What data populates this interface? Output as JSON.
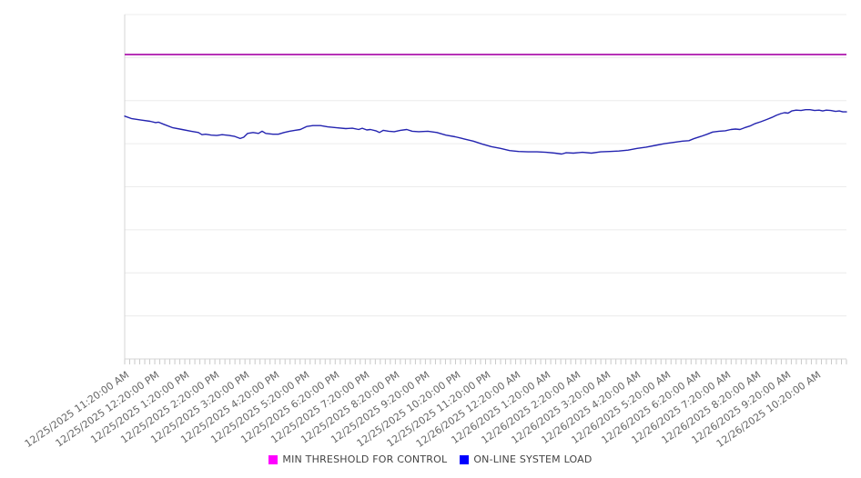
{
  "chart_data": {
    "type": "line",
    "title": "",
    "xlabel": "",
    "ylabel": "",
    "y_axis": {
      "labels_visible": false,
      "range": [
        0,
        8
      ],
      "gridline_interval": 1
    },
    "x_axis": {
      "minor_ticks_per_hour": 6,
      "hours_span": 24,
      "tick_labels": [
        "12/25/2025 11:20:00 AM",
        "12/25/2025 12:20:00 PM",
        "12/25/2025 1:20:00 PM",
        "12/25/2025 2:20:00 PM",
        "12/25/2025 3:20:00 PM",
        "12/25/2025 4:20:00 PM",
        "12/25/2025 5:20:00 PM",
        "12/25/2025 6:20:00 PM",
        "12/25/2025 7:20:00 PM",
        "12/25/2025 8:20:00 PM",
        "12/25/2025 9:20:00 PM",
        "12/25/2025 10:20:00 PM",
        "12/25/2025 11:20:00 PM",
        "12/26/2025 12:20:00 AM",
        "12/26/2025 1:20:00 AM",
        "12/26/2025 2:20:00 AM",
        "12/26/2025 3:20:00 AM",
        "12/26/2025 4:20:00 AM",
        "12/26/2025 5:20:00 AM",
        "12/26/2025 6:20:00 AM",
        "12/26/2025 7:20:00 AM",
        "12/26/2025 8:20:00 AM",
        "12/26/2025 9:20:00 AM",
        "12/26/2025 10:20:00 AM"
      ]
    },
    "legend_position": "bottom-center",
    "legend": [
      {
        "label": "MIN THRESHOLD FOR CONTROL",
        "swatch_color": "#ff00ff"
      },
      {
        "label": "ON-LINE SYSTEM LOAD",
        "swatch_color": "#0000ff"
      }
    ],
    "series": [
      {
        "name": "MIN THRESHOLD FOR CONTROL",
        "kind": "constant",
        "value": 7.07,
        "line_color": "#b732b7"
      },
      {
        "name": "ON-LINE SYSTEM LOAD",
        "kind": "points",
        "line_color": "#2323b0",
        "x_unit": "hours_from_first_tick",
        "y_unit": "gridline_units",
        "points": [
          [
            0,
            5.64
          ],
          [
            0.24,
            5.58
          ],
          [
            0.54,
            5.55
          ],
          [
            0.85,
            5.52
          ],
          [
            1.03,
            5.49
          ],
          [
            1.12,
            5.5
          ],
          [
            1.3,
            5.45
          ],
          [
            1.6,
            5.37
          ],
          [
            1.91,
            5.33
          ],
          [
            2.21,
            5.29
          ],
          [
            2.45,
            5.26
          ],
          [
            2.57,
            5.21
          ],
          [
            2.69,
            5.22
          ],
          [
            2.88,
            5.2
          ],
          [
            3.06,
            5.19
          ],
          [
            3.24,
            5.21
          ],
          [
            3.48,
            5.19
          ],
          [
            3.66,
            5.17
          ],
          [
            3.84,
            5.12
          ],
          [
            3.96,
            5.15
          ],
          [
            4.09,
            5.24
          ],
          [
            4.27,
            5.26
          ],
          [
            4.45,
            5.24
          ],
          [
            4.57,
            5.29
          ],
          [
            4.69,
            5.24
          ],
          [
            4.93,
            5.22
          ],
          [
            5.11,
            5.22
          ],
          [
            5.3,
            5.26
          ],
          [
            5.48,
            5.29
          ],
          [
            5.66,
            5.31
          ],
          [
            5.84,
            5.33
          ],
          [
            6.05,
            5.4
          ],
          [
            6.26,
            5.42
          ],
          [
            6.51,
            5.42
          ],
          [
            6.75,
            5.39
          ],
          [
            7.05,
            5.37
          ],
          [
            7.35,
            5.35
          ],
          [
            7.57,
            5.36
          ],
          [
            7.78,
            5.33
          ],
          [
            7.9,
            5.36
          ],
          [
            8.05,
            5.32
          ],
          [
            8.17,
            5.33
          ],
          [
            8.35,
            5.3
          ],
          [
            8.47,
            5.26
          ],
          [
            8.6,
            5.31
          ],
          [
            8.78,
            5.29
          ],
          [
            8.96,
            5.28
          ],
          [
            9.17,
            5.31
          ],
          [
            9.38,
            5.33
          ],
          [
            9.56,
            5.29
          ],
          [
            9.78,
            5.28
          ],
          [
            10.08,
            5.29
          ],
          [
            10.38,
            5.26
          ],
          [
            10.68,
            5.2
          ],
          [
            10.99,
            5.16
          ],
          [
            11.29,
            5.11
          ],
          [
            11.59,
            5.06
          ],
          [
            11.89,
            4.99
          ],
          [
            12.2,
            4.93
          ],
          [
            12.5,
            4.89
          ],
          [
            12.8,
            4.84
          ],
          [
            13.1,
            4.82
          ],
          [
            13.41,
            4.81
          ],
          [
            13.71,
            4.81
          ],
          [
            14.01,
            4.8
          ],
          [
            14.31,
            4.78
          ],
          [
            14.53,
            4.76
          ],
          [
            14.68,
            4.79
          ],
          [
            14.92,
            4.78
          ],
          [
            15.22,
            4.8
          ],
          [
            15.52,
            4.78
          ],
          [
            15.83,
            4.81
          ],
          [
            16.13,
            4.82
          ],
          [
            16.43,
            4.83
          ],
          [
            16.74,
            4.85
          ],
          [
            17.04,
            4.89
          ],
          [
            17.34,
            4.92
          ],
          [
            17.64,
            4.96
          ],
          [
            17.95,
            5.0
          ],
          [
            18.25,
            5.03
          ],
          [
            18.55,
            5.06
          ],
          [
            18.76,
            5.07
          ],
          [
            18.94,
            5.12
          ],
          [
            19.16,
            5.17
          ],
          [
            19.37,
            5.22
          ],
          [
            19.55,
            5.27
          ],
          [
            19.76,
            5.29
          ],
          [
            19.97,
            5.3
          ],
          [
            20.16,
            5.33
          ],
          [
            20.31,
            5.34
          ],
          [
            20.46,
            5.33
          ],
          [
            20.61,
            5.37
          ],
          [
            20.79,
            5.41
          ],
          [
            20.97,
            5.47
          ],
          [
            21.15,
            5.51
          ],
          [
            21.34,
            5.56
          ],
          [
            21.52,
            5.61
          ],
          [
            21.67,
            5.66
          ],
          [
            21.82,
            5.7
          ],
          [
            21.94,
            5.72
          ],
          [
            22.06,
            5.71
          ],
          [
            22.18,
            5.76
          ],
          [
            22.33,
            5.78
          ],
          [
            22.49,
            5.77
          ],
          [
            22.64,
            5.79
          ],
          [
            22.79,
            5.79
          ],
          [
            22.94,
            5.77
          ],
          [
            23.09,
            5.78
          ],
          [
            23.21,
            5.76
          ],
          [
            23.33,
            5.78
          ],
          [
            23.48,
            5.77
          ],
          [
            23.64,
            5.75
          ],
          [
            23.76,
            5.76
          ],
          [
            23.88,
            5.74
          ],
          [
            24.0,
            5.74
          ]
        ]
      }
    ],
    "colors": {
      "gridline": "#ececec",
      "axis_line": "#d4d4d4",
      "tick": "#c9c9c9",
      "x_label_text": "#666666",
      "legend_text": "#444444"
    }
  }
}
